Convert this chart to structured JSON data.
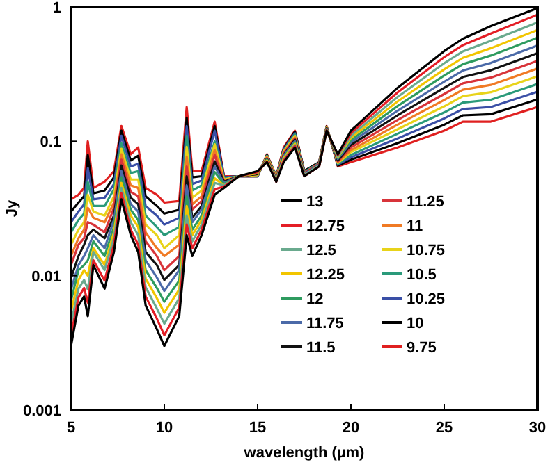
{
  "chart_data": {
    "type": "line",
    "xlabel": "wavelength (µm)",
    "ylabel": "Jy",
    "log": "y",
    "legend": "bottom right",
    "grid": false,
    "marker": "none",
    "line_style": "solid",
    "xlim": [
      5,
      30
    ],
    "xticks": [
      5,
      10,
      15,
      20,
      25,
      30
    ],
    "ylim": [
      0.001,
      1
    ],
    "yticks": [
      0.001,
      0.01,
      0.1,
      1
    ],
    "x": [
      5,
      5.4,
      5.7,
      5.9,
      6.2,
      6.8,
      7.3,
      7.7,
      8.2,
      8.6,
      9,
      9.6,
      10,
      10.8,
      11.2,
      11.5,
      12,
      12.7,
      13.2,
      14,
      15,
      15.5,
      16,
      16.4,
      17,
      17.5,
      18.3,
      18.7,
      19.3,
      20,
      22.5,
      25,
      26,
      27.5,
      30
    ],
    "series": [
      {
        "name": "13",
        "color": "#000000",
        "values": [
          0.003,
          0.006,
          0.007,
          0.005,
          0.012,
          0.008,
          0.015,
          0.037,
          0.02,
          0.015,
          0.006,
          0.004,
          0.003,
          0.005,
          0.02,
          0.014,
          0.02,
          0.04,
          0.045,
          0.055,
          0.06,
          0.07,
          0.05,
          0.07,
          0.09,
          0.055,
          0.065,
          0.12,
          0.08,
          0.12,
          0.25,
          0.47,
          0.58,
          0.72,
          0.98
        ]
      },
      {
        "name": "12.75",
        "color": "#e41e26",
        "values": [
          0.0036,
          0.0069,
          0.0081,
          0.0063,
          0.013,
          0.0092,
          0.017,
          0.041,
          0.022,
          0.017,
          0.007,
          0.0048,
          0.0036,
          0.0058,
          0.024,
          0.016,
          0.022,
          0.044,
          0.046,
          0.055,
          0.059,
          0.071,
          0.05,
          0.072,
          0.092,
          0.055,
          0.065,
          0.121,
          0.079,
          0.115,
          0.231,
          0.423,
          0.52,
          0.634,
          0.876
        ]
      },
      {
        "name": "12.5",
        "color": "#6aaa8e",
        "values": [
          0.0044,
          0.008,
          0.0093,
          0.0079,
          0.015,
          0.011,
          0.019,
          0.045,
          0.025,
          0.02,
          0.0082,
          0.0057,
          0.0044,
          0.0068,
          0.028,
          0.018,
          0.024,
          0.049,
          0.047,
          0.055,
          0.059,
          0.071,
          0.051,
          0.073,
          0.094,
          0.056,
          0.066,
          0.122,
          0.077,
          0.11,
          0.214,
          0.381,
          0.467,
          0.559,
          0.767
        ]
      },
      {
        "name": "12.25",
        "color": "#f2c500",
        "values": [
          0.0054,
          0.0093,
          0.011,
          0.01,
          0.016,
          0.012,
          0.021,
          0.049,
          0.028,
          0.023,
          0.0095,
          0.0068,
          0.0053,
          0.0079,
          0.033,
          0.02,
          0.026,
          0.053,
          0.047,
          0.055,
          0.058,
          0.072,
          0.051,
          0.075,
          0.096,
          0.056,
          0.066,
          0.122,
          0.076,
          0.106,
          0.198,
          0.343,
          0.418,
          0.493,
          0.673
        ]
      },
      {
        "name": "12",
        "color": "#2e9b5f",
        "values": [
          0.0065,
          0.011,
          0.012,
          0.013,
          0.018,
          0.014,
          0.023,
          0.054,
          0.031,
          0.026,
          0.011,
          0.0081,
          0.0064,
          0.0092,
          0.039,
          0.022,
          0.028,
          0.059,
          0.048,
          0.055,
          0.058,
          0.073,
          0.051,
          0.076,
          0.098,
          0.056,
          0.066,
          0.123,
          0.075,
          0.102,
          0.183,
          0.309,
          0.375,
          0.435,
          0.59
        ]
      },
      {
        "name": "11.75",
        "color": "#4b6aa8",
        "values": [
          0.0079,
          0.012,
          0.014,
          0.016,
          0.02,
          0.016,
          0.026,
          0.06,
          0.034,
          0.03,
          0.013,
          0.0097,
          0.0077,
          0.011,
          0.047,
          0.025,
          0.031,
          0.065,
          0.049,
          0.055,
          0.058,
          0.073,
          0.052,
          0.078,
          0.1,
          0.057,
          0.067,
          0.124,
          0.074,
          0.098,
          0.169,
          0.278,
          0.336,
          0.383,
          0.516
        ]
      },
      {
        "name": "11.5",
        "color": "#111111",
        "values": [
          0.0096,
          0.014,
          0.017,
          0.02,
          0.022,
          0.019,
          0.028,
          0.066,
          0.038,
          0.034,
          0.015,
          0.012,
          0.0093,
          0.012,
          0.055,
          0.027,
          0.033,
          0.071,
          0.05,
          0.055,
          0.057,
          0.074,
          0.052,
          0.079,
          0.103,
          0.057,
          0.067,
          0.125,
          0.072,
          0.094,
          0.156,
          0.25,
          0.301,
          0.338,
          0.453
        ]
      },
      {
        "name": "11.25",
        "color": "#d8343a",
        "values": [
          0.012,
          0.017,
          0.019,
          0.025,
          0.024,
          0.021,
          0.032,
          0.073,
          0.042,
          0.039,
          0.018,
          0.014,
          0.011,
          0.014,
          0.065,
          0.031,
          0.036,
          0.079,
          0.05,
          0.055,
          0.057,
          0.075,
          0.053,
          0.081,
          0.105,
          0.058,
          0.068,
          0.125,
          0.071,
          0.09,
          0.144,
          0.225,
          0.27,
          0.298,
          0.397
        ]
      },
      {
        "name": "11",
        "color": "#f07a24",
        "values": [
          0.014,
          0.019,
          0.022,
          0.032,
          0.027,
          0.025,
          0.035,
          0.08,
          0.047,
          0.045,
          0.021,
          0.016,
          0.014,
          0.017,
          0.077,
          0.034,
          0.039,
          0.086,
          0.051,
          0.055,
          0.057,
          0.076,
          0.053,
          0.082,
          0.107,
          0.058,
          0.068,
          0.126,
          0.07,
          0.086,
          0.133,
          0.203,
          0.242,
          0.263,
          0.348
        ]
      },
      {
        "name": "10.75",
        "color": "#e8d31a",
        "values": [
          0.017,
          0.022,
          0.025,
          0.04,
          0.03,
          0.028,
          0.039,
          0.088,
          0.052,
          0.052,
          0.024,
          0.02,
          0.016,
          0.02,
          0.091,
          0.038,
          0.043,
          0.095,
          0.052,
          0.055,
          0.056,
          0.077,
          0.054,
          0.084,
          0.11,
          0.058,
          0.068,
          0.127,
          0.069,
          0.083,
          0.123,
          0.182,
          0.217,
          0.232,
          0.305
        ]
      },
      {
        "name": "10.5",
        "color": "#2a9a7a",
        "values": [
          0.021,
          0.026,
          0.029,
          0.05,
          0.033,
          0.033,
          0.044,
          0.097,
          0.058,
          0.06,
          0.028,
          0.023,
          0.02,
          0.023,
          0.11,
          0.043,
          0.047,
          0.1,
          0.053,
          0.055,
          0.056,
          0.078,
          0.054,
          0.085,
          0.113,
          0.059,
          0.069,
          0.128,
          0.068,
          0.079,
          0.114,
          0.164,
          0.194,
          0.204,
          0.267
        ]
      },
      {
        "name": "10.25",
        "color": "#3a4fa6",
        "values": [
          0.025,
          0.03,
          0.034,
          0.063,
          0.037,
          0.038,
          0.048,
          0.11,
          0.065,
          0.068,
          0.033,
          0.028,
          0.024,
          0.027,
          0.13,
          0.048,
          0.051,
          0.12,
          0.054,
          0.055,
          0.055,
          0.078,
          0.054,
          0.087,
          0.115,
          0.059,
          0.069,
          0.128,
          0.067,
          0.076,
          0.105,
          0.148,
          0.174,
          0.18,
          0.234
        ]
      },
      {
        "name": "10",
        "color": "#000000",
        "values": [
          0.03,
          0.035,
          0.039,
          0.079,
          0.041,
          0.043,
          0.054,
          0.12,
          0.072,
          0.078,
          0.039,
          0.033,
          0.029,
          0.031,
          0.15,
          0.054,
          0.055,
          0.13,
          0.054,
          0.055,
          0.055,
          0.079,
          0.055,
          0.088,
          0.118,
          0.06,
          0.07,
          0.129,
          0.066,
          0.073,
          0.097,
          0.133,
          0.156,
          0.159,
          0.205
        ]
      },
      {
        "name": "9.75",
        "color": "#e02020",
        "values": [
          0.037,
          0.04,
          0.045,
          0.1,
          0.045,
          0.05,
          0.06,
          0.13,
          0.08,
          0.09,
          0.045,
          0.04,
          0.035,
          0.036,
          0.18,
          0.06,
          0.06,
          0.14,
          0.055,
          0.055,
          0.055,
          0.08,
          0.055,
          0.09,
          0.12,
          0.06,
          0.07,
          0.13,
          0.065,
          0.07,
          0.09,
          0.12,
          0.14,
          0.14,
          0.18
        ]
      }
    ]
  }
}
